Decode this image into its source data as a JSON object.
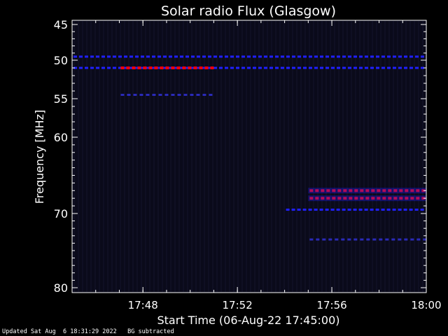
{
  "chart_data": {
    "type": "heatmap",
    "title": "Solar radio Flux (Glasgow)",
    "xlabel": "Start Time (06-Aug-22 17:45:00)",
    "ylabel": "Frequency [MHz]",
    "x_range_minutes": [
      "17:45",
      "18:00"
    ],
    "x_ticks": [
      "17:48",
      "17:52",
      "17:56",
      "18:00"
    ],
    "y_ticks": [
      45,
      50,
      55,
      60,
      70,
      80
    ],
    "y_range_mhz": [
      45,
      80
    ],
    "colormap": {
      "low": "#0a0a1a",
      "mid": "#2020ff",
      "high": "#ff0000"
    },
    "features": [
      {
        "name": "band-49.5",
        "freq_mhz": 49.5,
        "start": "17:45",
        "end": "18:00",
        "level": "medium"
      },
      {
        "name": "band-51.0",
        "freq_mhz": 51.0,
        "start": "17:45",
        "end": "18:00",
        "level": "medium"
      },
      {
        "name": "band-51.0-red",
        "freq_mhz": 51.0,
        "start": "17:47",
        "end": "17:51",
        "level": "high"
      },
      {
        "name": "band-54.5",
        "freq_mhz": 54.5,
        "start": "17:47",
        "end": "17:51",
        "level": "low"
      },
      {
        "name": "burst-67",
        "freq_mhz": 67.0,
        "start": "17:55",
        "end": "18:00",
        "level": "high"
      },
      {
        "name": "burst-68",
        "freq_mhz": 68.0,
        "start": "17:55",
        "end": "18:00",
        "level": "high"
      },
      {
        "name": "band-69.5",
        "freq_mhz": 69.5,
        "start": "17:54",
        "end": "18:00",
        "level": "medium"
      },
      {
        "name": "band-73",
        "freq_mhz": 73.5,
        "start": "17:55",
        "end": "18:00",
        "level": "low"
      }
    ]
  },
  "footer": {
    "updated": "Updated Sat Aug  6 18:31:29 2022",
    "bg_note": "BG subtracted"
  }
}
